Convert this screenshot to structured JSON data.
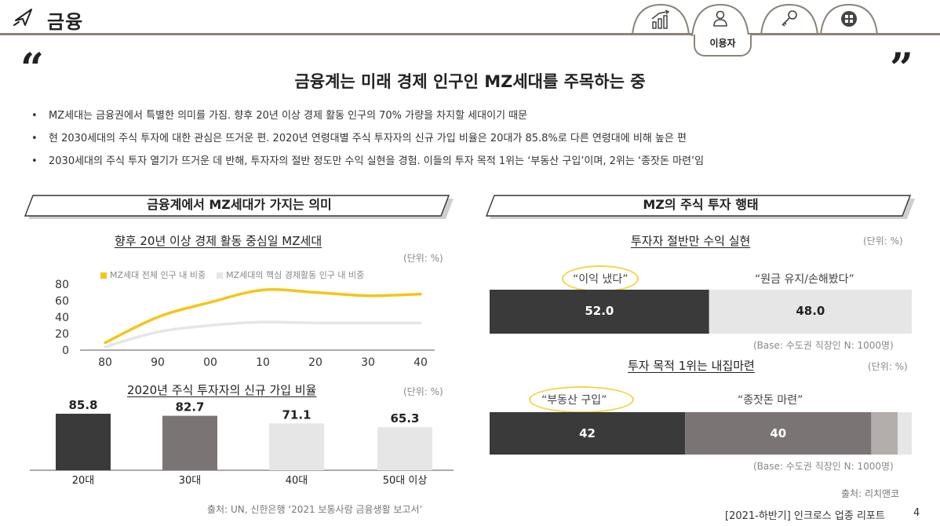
{
  "header": {
    "title": "금융",
    "brand_icon": "paper-plane-icon",
    "tabs": [
      {
        "icon": "growth-chart-icon"
      },
      {
        "icon": "person-icon",
        "label": "이용자",
        "active": true
      },
      {
        "icon": "key-icon"
      },
      {
        "icon": "grid-circle-icon"
      }
    ]
  },
  "headline": {
    "open_quote": "“",
    "close_quote": "”",
    "text": "금융계는 미래 경제 인구인 MZ세대를 주목하는 중"
  },
  "bullets": [
    "MZ세대는 금융권에서 특별한 의미를 가짐. 향후 20년 이상 경제 활동 인구의 70% 가량을 차지할 세대이기 때문",
    "현 2030세대의 주식 투자에 대한 관심은 뜨거운 편. 2020년 연령대별 주식 투자자의 신규 가입 비율은 20대가 85.8%로 다른 연령대에 비해 높은 편",
    "2030세대의 주식 투자 열기가 뜨거운 데 반해, 투자자의 절반 정도만 수익 실현을 경험. 이들의 투자 목적 1위는 ‘부동산 구입’이며, 2위는 ‘종잣돈 마련’임"
  ],
  "left_section": {
    "title": "금융계에서 MZ세대가 가지는 의미",
    "source": "출처: UN, 신한은행 ‘2021 보통사람 금융생활 보고서’"
  },
  "right_section": {
    "title": "MZ의 주식 투자 행태",
    "source": "출처: 리치앤코"
  },
  "chart_data": [
    {
      "type": "line",
      "title": "향후 20년 이상 경제 활동 중심일 MZ세대",
      "unit": "(단위: %)",
      "x": [
        "80",
        "90",
        "00",
        "10",
        "20",
        "30",
        "40"
      ],
      "yticks": [
        0,
        20,
        40,
        60,
        80
      ],
      "ylim": [
        0,
        80
      ],
      "series": [
        {
          "name": "MZ세대 전체 인구 내 비중",
          "color": "#f5c518",
          "values": [
            9,
            40,
            58,
            73,
            70,
            66,
            68
          ]
        },
        {
          "name": "MZ세대의 핵심 경제활동 인구 내 비중",
          "color": "#e6e6e6",
          "values": [
            4,
            22,
            30,
            34,
            33,
            33,
            33
          ]
        }
      ],
      "legend": "top"
    },
    {
      "type": "bar",
      "title": "2020년 주식 투자자의 신규 가입 비율",
      "unit": "(단위: %)",
      "categories": [
        "20대",
        "30대",
        "40대",
        "50대 이상"
      ],
      "values": [
        85.8,
        82.7,
        71.1,
        65.3
      ],
      "labels": [
        "85.8",
        "82.7",
        "71.1",
        "65.3"
      ],
      "colors": [
        "#3a3a3a",
        "#7a7574",
        "#e6e6e6",
        "#e6e6e6"
      ]
    },
    {
      "type": "bar",
      "orientation": "horizontal-stacked",
      "title": "투자자 절반만 수익 실현",
      "unit": "(단위: %)",
      "segments": [
        {
          "name": "“이익 냈다”",
          "value": 52.0,
          "label": "52.0",
          "color": "#3a3a3a",
          "highlight": true
        },
        {
          "name": "“원금 유지/손해봤다”",
          "value": 48.0,
          "label": "48.0",
          "color": "#e6e6e6"
        }
      ],
      "base": "(Base: 수도권 직장인 N: 1000명)"
    },
    {
      "type": "bar",
      "orientation": "horizontal-stacked",
      "title": "투자 목적 1위는 내집마련",
      "unit": "(단위: %)",
      "segments": [
        {
          "name": "“부동산 구입”",
          "value": 42,
          "label": "42",
          "color": "#3a3a3a",
          "highlight": true
        },
        {
          "name": "“종잣돈 마련”",
          "value": 40,
          "label": "40",
          "color": "#7a7574"
        },
        {
          "value": 5.7,
          "color": "#b3aeac"
        },
        {
          "value": 3.0,
          "color": "#e6e6e6"
        }
      ],
      "total": 90.7,
      "base": "(Base: 수도권 직장인 N: 1000명)"
    }
  ],
  "footer": {
    "report": "[2021-하반기] 인크로스 업종 리포트",
    "page": "4"
  }
}
